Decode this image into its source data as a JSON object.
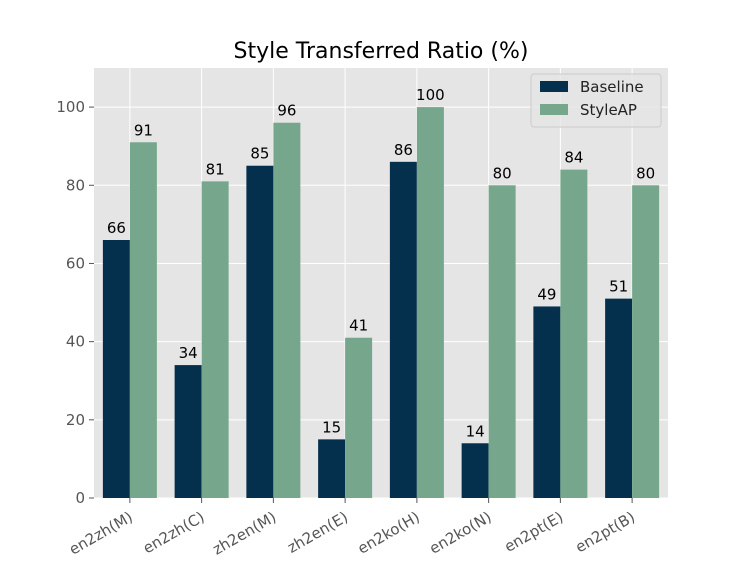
{
  "chart_data": {
    "type": "bar",
    "title": "Style Transferred Ratio (%)",
    "xlabel": "",
    "ylabel": "",
    "categories": [
      "en2zh(M)",
      "en2zh(C)",
      "zh2en(M)",
      "zh2en(E)",
      "en2ko(H)",
      "en2ko(N)",
      "en2pt(E)",
      "en2pt(B)"
    ],
    "series": [
      {
        "name": "Baseline",
        "values": [
          66,
          34,
          85,
          15,
          86,
          14,
          49,
          51
        ],
        "color": "#04304d"
      },
      {
        "name": "StyleAP",
        "values": [
          91,
          81,
          96,
          41,
          100,
          80,
          84,
          80
        ],
        "color": "#76a68b"
      }
    ],
    "ylim": [
      0,
      110
    ],
    "yticks": [
      0,
      20,
      40,
      60,
      80,
      100
    ],
    "grid": true,
    "legend_position": "top-right",
    "background_color": "#e5e5e5",
    "grid_color": "#ffffff"
  }
}
